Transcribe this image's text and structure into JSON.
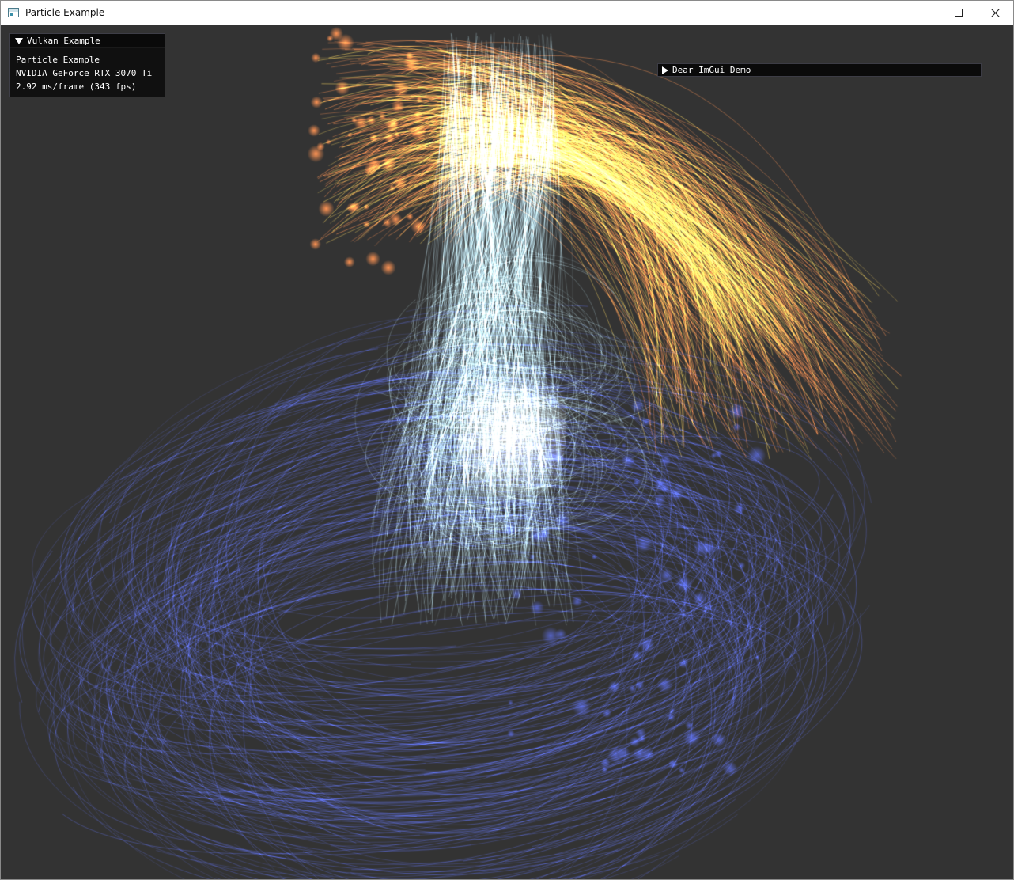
{
  "window": {
    "title": "Particle Example",
    "icon": "app-window-icon",
    "controls": {
      "minimize": "minimize-icon",
      "maximize": "maximize-icon",
      "close": "close-icon"
    }
  },
  "overlay": {
    "title": "Vulkan Example",
    "lines": [
      "Particle Example",
      "NVIDIA GeForce RTX 3070 Ti",
      "2.92 ms/frame (343 fps)"
    ]
  },
  "demo_window": {
    "title": "Dear ImGui Demo"
  },
  "scene": {
    "background": "#333333",
    "colors": {
      "orange": "#ff7a2a",
      "yellow": "#ffd23a",
      "cyan": "#bfefff",
      "blue": "#3d55ff"
    }
  }
}
